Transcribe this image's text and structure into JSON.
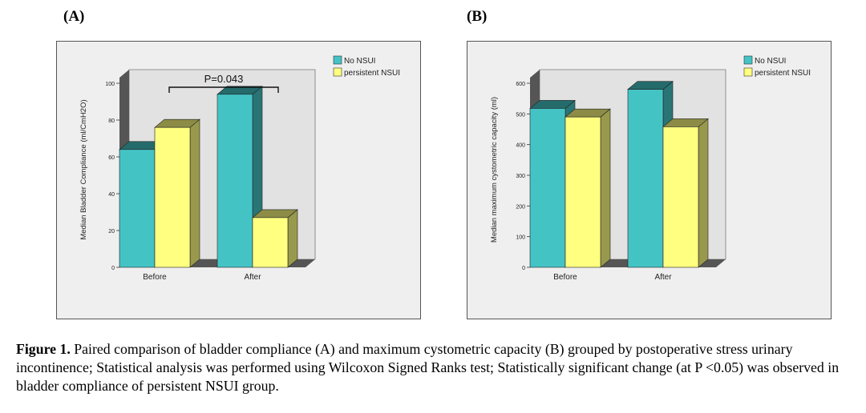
{
  "panels": [
    {
      "label": "(A)",
      "chart_data": {
        "type": "bar",
        "categories": [
          "Before",
          "After"
        ],
        "series": [
          {
            "name": "No NSUI",
            "values": [
              64,
              94
            ]
          },
          {
            "name": "persistent NSUI",
            "values": [
              76,
              27
            ]
          }
        ],
        "ylabel": "Median Bladder Compliance (ml/CmH2O)",
        "xlabel": "",
        "ylim": [
          0,
          100
        ],
        "yticks": [
          "0",
          "20",
          "40",
          "60",
          "80",
          "100"
        ],
        "annotation": "P=0.043",
        "legend": "top-right",
        "colors": [
          "#44c3c5",
          "#ffff80"
        ]
      }
    },
    {
      "label": "(B)",
      "chart_data": {
        "type": "bar",
        "categories": [
          "Before",
          "After"
        ],
        "series": [
          {
            "name": "No NSUI",
            "values": [
              518,
              580
            ]
          },
          {
            "name": "persistent NSUI",
            "values": [
              490,
              458
            ]
          }
        ],
        "ylabel": "Median maximum cystometric capacity (ml)",
        "xlabel": "",
        "ylim": [
          0,
          600
        ],
        "yticks": [
          "0",
          "100",
          "200",
          "300",
          "400",
          "500",
          "600"
        ],
        "annotation": "",
        "legend": "top-right",
        "colors": [
          "#44c3c5",
          "#ffff80"
        ]
      }
    }
  ],
  "caption": {
    "bold": "Figure 1.",
    "text": " Paired comparison of bladder compliance (A) and maximum cystometric capacity (B) grouped by postoperative stress urinary incontinence; Statistical analysis was performed using Wilcoxon Signed Ranks test; Statistically significant change (at P <0.05) was observed in bladder compliance of persistent NSUI group."
  }
}
